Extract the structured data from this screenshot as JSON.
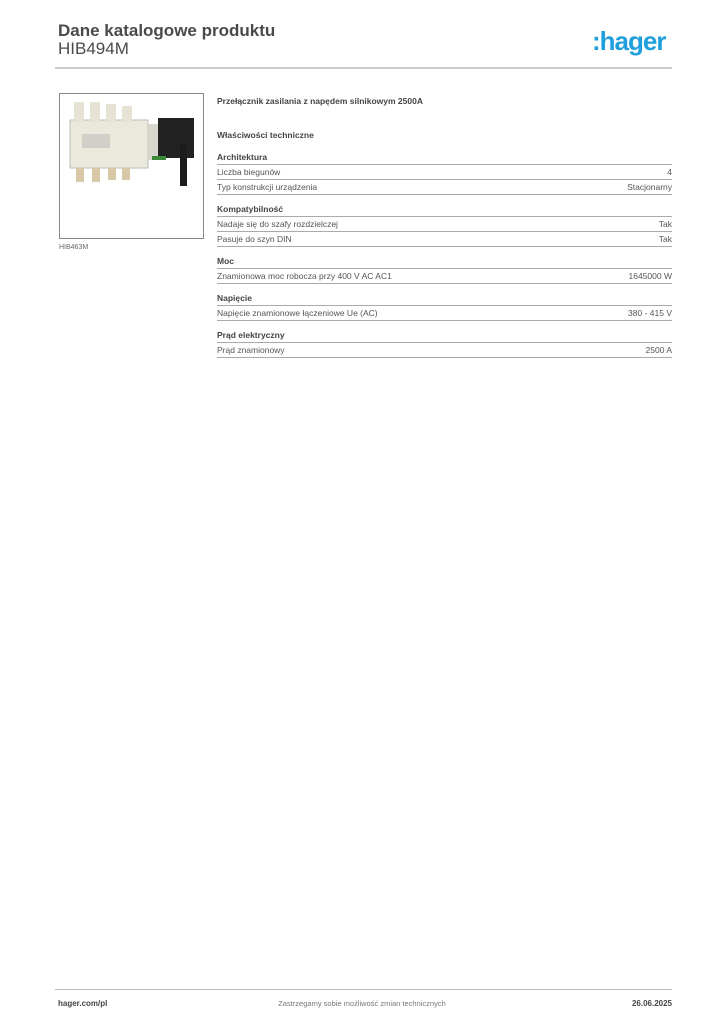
{
  "header": {
    "title": "Dane katalogowe produktu",
    "product_code": "HIB494M",
    "logo_text": ":hager",
    "logo_color": "#1fa0dc"
  },
  "image": {
    "caption": "HIB463M"
  },
  "product_name": "Przełącznik zasilania z napędem silnikowym 2500A",
  "properties_title": "Właściwości techniczne",
  "sections": [
    {
      "title": "Architektura",
      "rows": [
        {
          "label": "Liczba biegunów",
          "value": "4"
        },
        {
          "label": "Typ konstrukcji urządzenia",
          "value": "Stacjonarny"
        }
      ]
    },
    {
      "title": "Kompatybilność",
      "rows": [
        {
          "label": "Nadaje się do szafy rozdzielczej",
          "value": "Tak"
        },
        {
          "label": "Pasuje do szyn DIN",
          "value": "Tak"
        }
      ]
    },
    {
      "title": "Moc",
      "rows": [
        {
          "label": "Znamionowa moc robocza przy 400 V AC AC1",
          "value": "1645000 W"
        }
      ]
    },
    {
      "title": "Napięcie",
      "rows": [
        {
          "label": "Napięcie znamionowe łączeniowe Ue (AC)",
          "value": "380 - 415 V"
        }
      ]
    },
    {
      "title": "Prąd elektryczny",
      "rows": [
        {
          "label": "Prąd znamionowy",
          "value": "2500 A"
        }
      ]
    }
  ],
  "footer": {
    "website": "hager.com/pl",
    "notice": "Zastrzegamy sobie możliwość zmian technicznych",
    "date": "26.06.2025"
  }
}
